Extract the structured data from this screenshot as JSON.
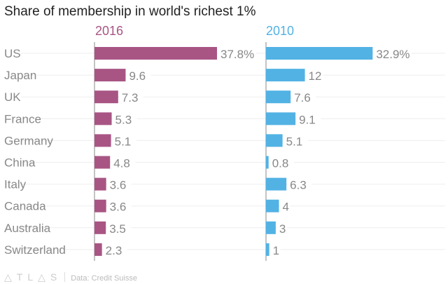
{
  "chart_data": {
    "type": "bar",
    "title": "Share of membership in world's richest 1%",
    "categories": [
      "US",
      "Japan",
      "UK",
      "France",
      "Germany",
      "China",
      "Italy",
      "Canada",
      "Australia",
      "Switzerland"
    ],
    "series": [
      {
        "name": "2016",
        "color": "#a85584",
        "values": [
          37.8,
          9.6,
          7.3,
          5.3,
          5.1,
          4.8,
          3.6,
          3.6,
          3.5,
          2.3
        ],
        "labels": [
          "37.8%",
          "9.6",
          "7.3",
          "5.3",
          "5.1",
          "4.8",
          "3.6",
          "3.6",
          "3.5",
          "2.3"
        ]
      },
      {
        "name": "2010",
        "color": "#52b2e4",
        "values": [
          32.9,
          12,
          7.6,
          9.1,
          5.1,
          0.8,
          6.3,
          4,
          3,
          1
        ],
        "labels": [
          "32.9%",
          "12",
          "7.6",
          "9.1",
          "5.1",
          "0.8",
          "6.3",
          "4",
          "3",
          "1"
        ]
      }
    ],
    "xlabel": "",
    "ylabel": "",
    "xlim": [
      0,
      40
    ],
    "source": "Data: Credit Suisse",
    "logo": "ATLAS"
  }
}
